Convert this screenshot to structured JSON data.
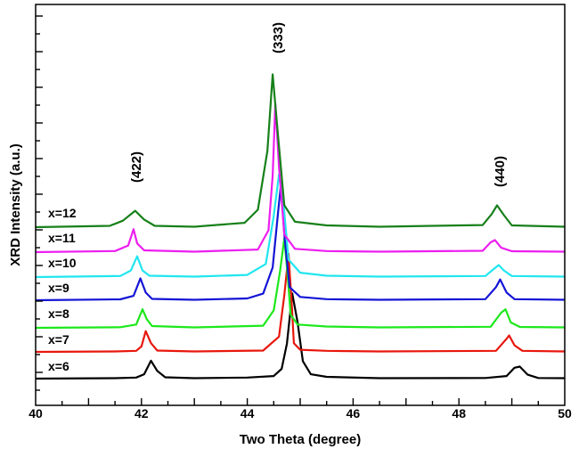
{
  "chart_data": {
    "type": "line",
    "title": "",
    "xlabel": "Two Theta (degree)",
    "ylabel": "XRD Intensity (a.u.)",
    "xlim": [
      40,
      50
    ],
    "xticks": [
      "40",
      "42",
      "44",
      "46",
      "48",
      "50"
    ],
    "y_ticks_labeled": false,
    "peaks": [
      "(422)",
      "(333)",
      "(440)"
    ],
    "series": [
      {
        "name": "x=6",
        "color": "#000000",
        "points": [
          [
            40.0,
            0.0
          ],
          [
            41.5,
            0.02
          ],
          [
            41.9,
            0.05
          ],
          [
            42.05,
            0.2
          ],
          [
            42.18,
            0.82
          ],
          [
            42.3,
            0.35
          ],
          [
            42.45,
            0.06
          ],
          [
            43.0,
            0.02
          ],
          [
            44.0,
            0.05
          ],
          [
            44.5,
            0.12
          ],
          [
            44.65,
            0.45
          ],
          [
            44.75,
            1.6
          ],
          [
            44.85,
            3.9
          ],
          [
            44.95,
            2.6
          ],
          [
            45.05,
            0.8
          ],
          [
            45.2,
            0.2
          ],
          [
            45.5,
            0.08
          ],
          [
            46.5,
            0.02
          ],
          [
            48.5,
            0.03
          ],
          [
            48.9,
            0.12
          ],
          [
            49.05,
            0.5
          ],
          [
            49.15,
            0.55
          ],
          [
            49.3,
            0.18
          ],
          [
            49.5,
            0.03
          ],
          [
            50.0,
            0.02
          ]
        ]
      },
      {
        "name": "x=7",
        "color": "#e8170d",
        "points": [
          [
            40.0,
            0.0
          ],
          [
            41.5,
            0.02
          ],
          [
            41.9,
            0.05
          ],
          [
            42.0,
            0.25
          ],
          [
            42.08,
            0.95
          ],
          [
            42.18,
            0.4
          ],
          [
            42.3,
            0.06
          ],
          [
            43.0,
            0.02
          ],
          [
            44.3,
            0.06
          ],
          [
            44.6,
            0.7
          ],
          [
            44.7,
            2.6
          ],
          [
            44.78,
            4.5
          ],
          [
            44.84,
            2.2
          ],
          [
            44.88,
            0.4
          ],
          [
            45.0,
            0.1
          ],
          [
            45.5,
            0.05
          ],
          [
            46.5,
            0.02
          ],
          [
            48.7,
            0.05
          ],
          [
            48.9,
            0.6
          ],
          [
            48.95,
            0.75
          ],
          [
            49.05,
            0.3
          ],
          [
            49.2,
            0.05
          ],
          [
            50.0,
            0.02
          ]
        ]
      },
      {
        "name": "x=8",
        "color": "#1de81b",
        "points": [
          [
            40.0,
            0.0
          ],
          [
            41.6,
            0.03
          ],
          [
            41.9,
            0.15
          ],
          [
            42.02,
            0.85
          ],
          [
            42.1,
            0.4
          ],
          [
            42.2,
            0.08
          ],
          [
            43.0,
            0.02
          ],
          [
            44.3,
            0.1
          ],
          [
            44.5,
            0.8
          ],
          [
            44.62,
            2.6
          ],
          [
            44.7,
            4.1
          ],
          [
            44.76,
            2.5
          ],
          [
            44.82,
            0.6
          ],
          [
            44.95,
            0.15
          ],
          [
            45.5,
            0.06
          ],
          [
            46.5,
            0.02
          ],
          [
            48.6,
            0.05
          ],
          [
            48.8,
            0.7
          ],
          [
            48.88,
            0.85
          ],
          [
            48.98,
            0.25
          ],
          [
            49.15,
            0.04
          ],
          [
            50.0,
            0.02
          ]
        ]
      },
      {
        "name": "x=9",
        "color": "#1414d6",
        "points": [
          [
            40.0,
            0.0
          ],
          [
            41.6,
            0.04
          ],
          [
            41.85,
            0.2
          ],
          [
            41.98,
            1.0
          ],
          [
            42.08,
            0.35
          ],
          [
            42.2,
            0.06
          ],
          [
            43.0,
            0.02
          ],
          [
            44.0,
            0.08
          ],
          [
            44.3,
            0.3
          ],
          [
            44.48,
            1.5
          ],
          [
            44.58,
            4.0
          ],
          [
            44.64,
            5.4
          ],
          [
            44.7,
            3.0
          ],
          [
            44.8,
            0.6
          ],
          [
            45.0,
            0.15
          ],
          [
            45.5,
            0.05
          ],
          [
            46.5,
            0.02
          ],
          [
            48.5,
            0.05
          ],
          [
            48.7,
            0.6
          ],
          [
            48.78,
            0.95
          ],
          [
            48.9,
            0.35
          ],
          [
            49.05,
            0.05
          ],
          [
            50.0,
            0.02
          ]
        ]
      },
      {
        "name": "x=10",
        "color": "#21e6ef",
        "points": [
          [
            40.0,
            0.0
          ],
          [
            41.6,
            0.05
          ],
          [
            41.8,
            0.3
          ],
          [
            41.92,
            0.95
          ],
          [
            42.02,
            0.3
          ],
          [
            42.15,
            0.06
          ],
          [
            43.0,
            0.02
          ],
          [
            44.0,
            0.1
          ],
          [
            44.35,
            0.6
          ],
          [
            44.5,
            2.8
          ],
          [
            44.6,
            4.7
          ],
          [
            44.68,
            3.5
          ],
          [
            44.78,
            0.8
          ],
          [
            45.0,
            0.2
          ],
          [
            45.5,
            0.06
          ],
          [
            46.5,
            0.02
          ],
          [
            48.5,
            0.05
          ],
          [
            48.65,
            0.35
          ],
          [
            48.75,
            0.55
          ],
          [
            48.85,
            0.3
          ],
          [
            49.0,
            0.05
          ],
          [
            50.0,
            0.02
          ]
        ]
      },
      {
        "name": "x=11",
        "color": "#ec1ef0",
        "points": [
          [
            40.0,
            0.0
          ],
          [
            41.5,
            0.05
          ],
          [
            41.75,
            0.3
          ],
          [
            41.85,
            1.05
          ],
          [
            41.92,
            0.4
          ],
          [
            42.05,
            0.08
          ],
          [
            43.0,
            0.02
          ],
          [
            44.2,
            0.12
          ],
          [
            44.4,
            1.0
          ],
          [
            44.48,
            3.5
          ],
          [
            44.53,
            6.8
          ],
          [
            44.6,
            3.9
          ],
          [
            44.7,
            0.8
          ],
          [
            44.9,
            0.15
          ],
          [
            45.5,
            0.05
          ],
          [
            46.5,
            0.02
          ],
          [
            48.45,
            0.06
          ],
          [
            48.6,
            0.45
          ],
          [
            48.68,
            0.55
          ],
          [
            48.8,
            0.2
          ],
          [
            49.0,
            0.04
          ],
          [
            50.0,
            0.02
          ]
        ]
      },
      {
        "name": "x=12",
        "color": "#17801a",
        "points": [
          [
            40.0,
            0.0
          ],
          [
            41.4,
            0.06
          ],
          [
            41.65,
            0.3
          ],
          [
            41.88,
            0.75
          ],
          [
            42.05,
            0.35
          ],
          [
            42.25,
            0.06
          ],
          [
            43.0,
            0.02
          ],
          [
            43.95,
            0.2
          ],
          [
            44.2,
            0.8
          ],
          [
            44.38,
            3.5
          ],
          [
            44.48,
            7.0
          ],
          [
            44.58,
            4.2
          ],
          [
            44.7,
            1.0
          ],
          [
            44.9,
            0.25
          ],
          [
            45.5,
            0.08
          ],
          [
            46.5,
            0.02
          ],
          [
            48.45,
            0.1
          ],
          [
            48.62,
            0.6
          ],
          [
            48.72,
            1.0
          ],
          [
            48.85,
            0.55
          ],
          [
            49.0,
            0.08
          ],
          [
            50.0,
            0.02
          ]
        ]
      }
    ]
  }
}
